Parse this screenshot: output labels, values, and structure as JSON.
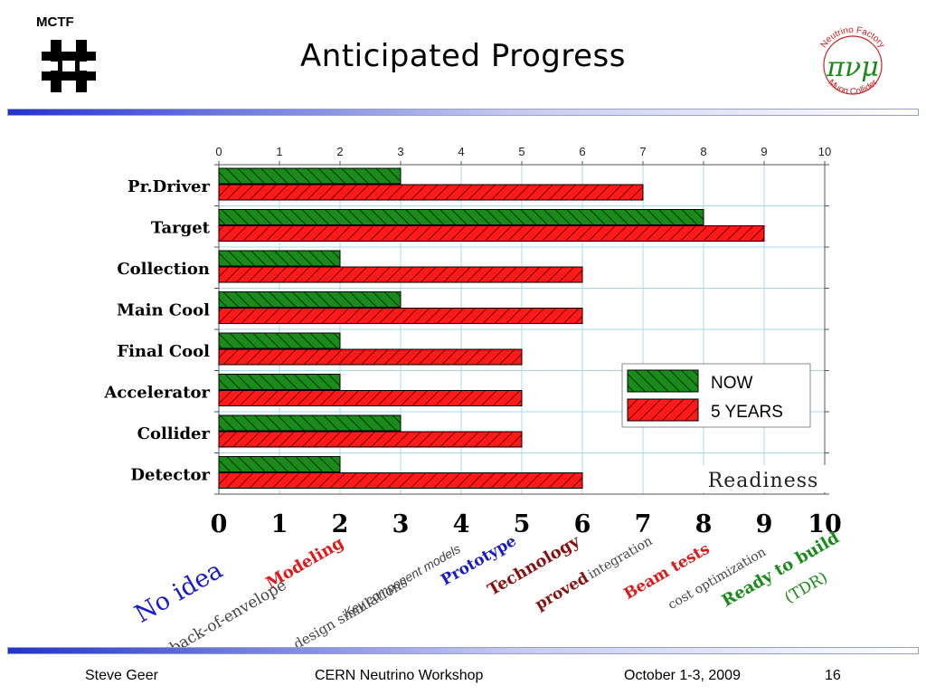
{
  "header": {
    "org_label": "MCTF",
    "title": "Anticipated Progress",
    "logo_ring_top": "Neutrino Factory",
    "logo_ring_bottom": "Muon Collider",
    "logo_glyphs": "πνμ"
  },
  "colors": {
    "now": "#1a8a1a",
    "five_years": "#ff1a1a",
    "grid": "#a8d8f0",
    "scale_blue": "#1a1acc",
    "scale_red": "#e01818",
    "scale_darkred": "#8a1010",
    "scale_green": "#1a8a1a",
    "scale_gray": "#444444"
  },
  "chart_data": {
    "type": "bar",
    "orientation": "horizontal",
    "categories": [
      "Pr.Driver",
      "Target",
      "Collection",
      "Main Cool",
      "Final Cool",
      "Accelerator",
      "Collider",
      "Detector"
    ],
    "series": [
      {
        "name": "NOW",
        "values": [
          3,
          8,
          2,
          3,
          2,
          2,
          3,
          2
        ]
      },
      {
        "name": "5 YEARS",
        "values": [
          7,
          9,
          6,
          6,
          5,
          5,
          5,
          6
        ]
      }
    ],
    "xlim": [
      0,
      10
    ],
    "x_ticks": [
      "0",
      "1",
      "2",
      "3",
      "4",
      "5",
      "6",
      "7",
      "8",
      "9",
      "10"
    ],
    "xlabel": "Readiness",
    "grid": true,
    "legend_position": "center-right"
  },
  "scale": {
    "numbers": [
      "0",
      "1",
      "2",
      "3",
      "4",
      "5",
      "6",
      "7",
      "8",
      "9",
      "10"
    ],
    "labels": [
      {
        "text": "No idea",
        "color_key": "scale_blue",
        "style": "serif-large"
      },
      {
        "text": "back-of-envelope",
        "color_key": "scale_gray",
        "style": "serif"
      },
      {
        "text": "Modeling",
        "color_key": "scale_red",
        "style": "serif-bold"
      },
      {
        "text": "design simulations",
        "color_key": "scale_gray",
        "style": "serif-light"
      },
      {
        "text": "Key component models",
        "color_key": "scale_gray",
        "style": "sans-italic"
      },
      {
        "text": "Prototype",
        "color_key": "scale_blue",
        "style": "serif-bold"
      },
      {
        "text": "Technology",
        "color_key": "scale_darkred",
        "style": "serif-bold"
      },
      {
        "text": "proved",
        "color_key": "scale_darkred",
        "style": "serif-bold"
      },
      {
        "text": "integration",
        "color_key": "scale_gray",
        "style": "serif"
      },
      {
        "text": "Beam tests",
        "color_key": "scale_red",
        "style": "serif-bold"
      },
      {
        "text": "cost optimization",
        "color_key": "scale_gray",
        "style": "serif"
      },
      {
        "text": "Ready to build",
        "color_key": "scale_green",
        "style": "serif-bold"
      },
      {
        "text": "(TDR)",
        "color_key": "scale_green",
        "style": "serif"
      }
    ]
  },
  "footer": {
    "author": "Steve Geer",
    "event": "CERN Neutrino Workshop",
    "date": "October 1-3, 2009",
    "page": "16"
  }
}
